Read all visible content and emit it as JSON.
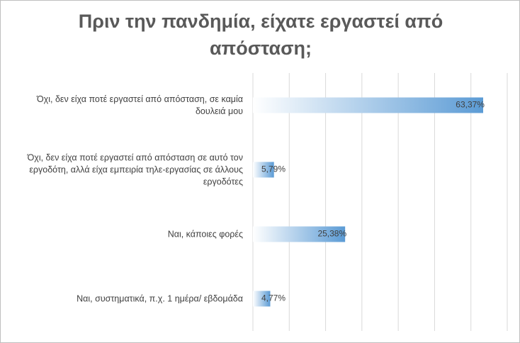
{
  "chart_data": {
    "type": "bar",
    "orientation": "horizontal",
    "title": "Πριν την πανδημία, είχατε εργαστεί από απόσταση;",
    "categories": [
      "Όχι, δεν είχα ποτέ εργαστεί από απόσταση, σε καμία δουλειά μου",
      "Όχι, δεν είχα ποτέ εργαστεί από απόσταση σε αυτό τον εργοδότη, αλλά είχα εμπειρία τηλε-εργασίας σε άλλους εργοδότες",
      "Ναι, κάποιες φορές",
      "Ναι, συστηματικά, π.χ. 1 ημέρα/ εβδομάδα"
    ],
    "values": [
      63.37,
      5.79,
      25.38,
      4.77
    ],
    "value_labels": [
      "63,37%",
      "5,79%",
      "25,38%",
      "4,77%"
    ],
    "color": "#5b9bd5",
    "xlim": [
      0,
      70
    ],
    "xticks": [
      0,
      10,
      20,
      30,
      40,
      50,
      60,
      70
    ],
    "grid": true
  }
}
